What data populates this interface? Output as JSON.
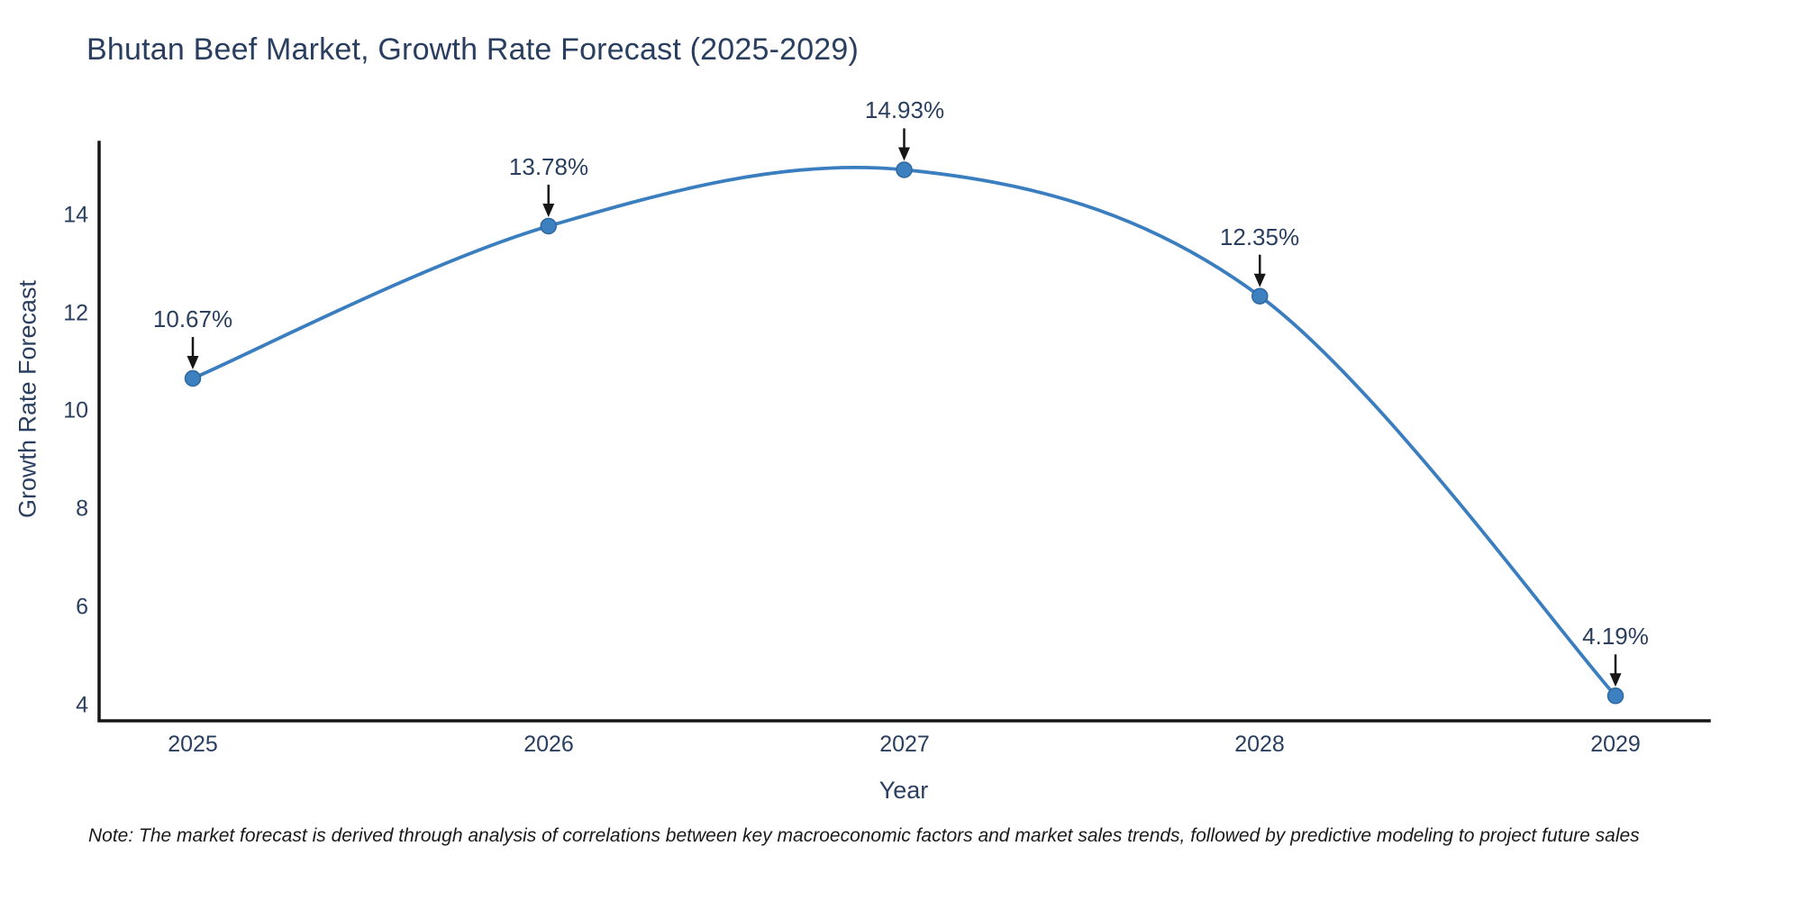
{
  "title": "Bhutan Beef Market, Growth Rate Forecast (2025-2029)",
  "footnote": "Note: The market forecast is derived through analysis of correlations between key macroeconomic factors and market sales trends, followed by predictive modeling to project future sales",
  "chart_data": {
    "type": "line",
    "title": "Bhutan Beef Market, Growth Rate Forecast (2025-2029)",
    "xlabel": "Year",
    "ylabel": "Growth Rate Forecast",
    "categories": [
      "2025",
      "2026",
      "2027",
      "2028",
      "2029"
    ],
    "series": [
      {
        "name": "Growth Rate Forecast",
        "values": [
          10.67,
          13.78,
          14.93,
          12.35,
          4.19
        ],
        "point_labels": [
          "10.67%",
          "13.78%",
          "14.93%",
          "12.35%",
          "4.19%"
        ]
      }
    ],
    "y_ticks": [
      4,
      6,
      8,
      10,
      12,
      14
    ],
    "ylim": [
      3.68,
      15.49
    ],
    "line_shape": "spline",
    "grid": false,
    "legend_position": "none",
    "colors": {
      "line": "#3a7ebf",
      "marker": "#3d80c0",
      "marker_edge": "#2e68a0",
      "axis": "#161616",
      "arrow": "#161616",
      "text": "#2a3f5f",
      "background": "#ffffff"
    }
  }
}
